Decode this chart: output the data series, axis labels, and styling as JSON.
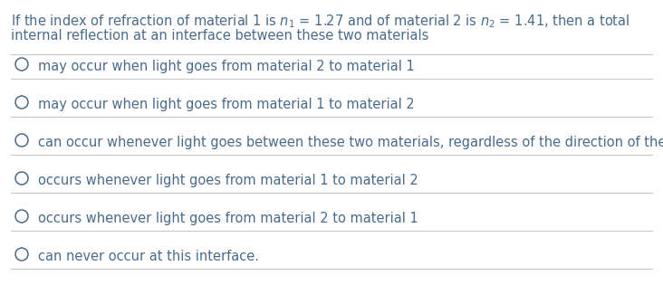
{
  "bg_color": "#ffffff",
  "text_color": "#4a6b8a",
  "line_color": "#c8c8c8",
  "options": [
    "may occur when light goes from material 2 to material 1",
    "may occur when light goes from material 1 to material 2",
    "can occur whenever light goes between these two materials, regardless of the direction of the light.",
    "occurs whenever light goes from material 1 to material 2",
    "occurs whenever light goes from material 2 to material 1",
    "can never occur at this interface."
  ],
  "font_size": 10.5,
  "fig_width": 7.32,
  "fig_height": 3.36,
  "dpi": 100
}
